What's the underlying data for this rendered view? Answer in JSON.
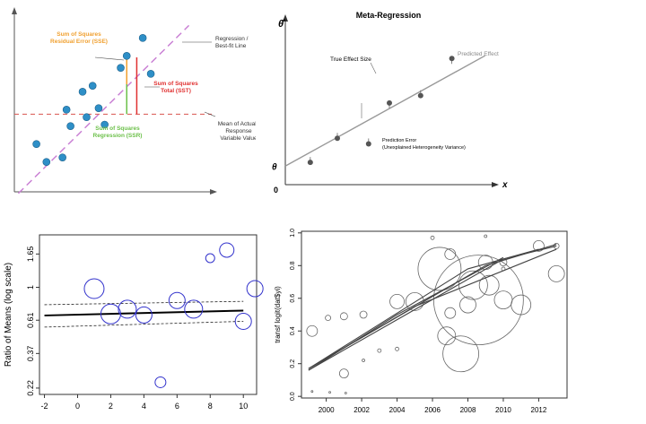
{
  "chart_data": [
    {
      "type": "scatter",
      "id": "regression-diagram",
      "title": "",
      "points": [
        [
          1.1,
          3.2
        ],
        [
          1.6,
          2.0
        ],
        [
          2.4,
          2.3
        ],
        [
          2.6,
          5.5
        ],
        [
          2.8,
          4.4
        ],
        [
          3.4,
          6.7
        ],
        [
          3.6,
          5.0
        ],
        [
          3.9,
          7.1
        ],
        [
          4.2,
          5.6
        ],
        [
          4.5,
          4.5
        ],
        [
          5.3,
          8.3
        ],
        [
          5.6,
          9.1
        ],
        [
          6.4,
          10.3
        ],
        [
          6.8,
          7.9
        ]
      ],
      "fit_line": {
        "intercept": 0.0,
        "slope": 1.28
      },
      "mean_y": 5.2,
      "xlim": [
        0,
        11
      ],
      "ylim": [
        0,
        12
      ],
      "annotations": {
        "sse": [
          "Sum of Squares",
          "Residual Error (SSE)"
        ],
        "ssr": [
          "Sum of Squares",
          "Regression (SSR)"
        ],
        "sst": [
          "Sum of Squares",
          "Total (SST)"
        ],
        "fit": [
          "Regression /",
          "Best-fit Line"
        ],
        "mean": [
          "Mean of Actual /",
          "Response",
          "Variable Value"
        ]
      },
      "colors": {
        "point": "#2e8fc7",
        "fit": "#c97fd4",
        "mean": "#d9534f",
        "sse": "#f0a030",
        "ssr": "#6cc04a",
        "sst": "#e03030"
      }
    },
    {
      "type": "scatter",
      "id": "meta-regression",
      "title": "Meta-Regression",
      "ylabel": "θ̂",
      "intercept_label": "θ",
      "origin_label": "0",
      "xlabel": "x",
      "points": [
        [
          1.2,
          1.2
        ],
        [
          2.5,
          2.5
        ],
        [
          4.0,
          2.2
        ],
        [
          5.0,
          4.4
        ],
        [
          6.5,
          4.8
        ],
        [
          8.0,
          6.8
        ]
      ],
      "line": {
        "intercept": 1.0,
        "slope": 0.62
      },
      "xlim": [
        0,
        10
      ],
      "ylim": [
        0,
        8.5
      ],
      "labels": {
        "true_effect": "True Effect Size",
        "predicted": "Predicted Effect",
        "error_title": "Prediction Error",
        "error_sub": "(Unexplained Heterogeneity Variance)"
      }
    },
    {
      "type": "scatter",
      "id": "bubble-log-ratio",
      "title": "",
      "ylabel": "Ratio of Means (log scale)",
      "xlabel": "",
      "x_ticks": [
        -2,
        0,
        2,
        4,
        6,
        8,
        10
      ],
      "y_ticks": [
        "1.65",
        "1",
        "0.61",
        "0.37",
        "0.22"
      ],
      "y_tick_values": [
        1.65,
        1,
        0.61,
        0.37,
        0.22
      ],
      "xlim": [
        -2.3,
        10.8
      ],
      "ylim": [
        0.2,
        2.2
      ],
      "points": [
        {
          "x": 1.0,
          "y": 0.98,
          "w": 11
        },
        {
          "x": 2.0,
          "y": 0.67,
          "w": 11
        },
        {
          "x": 3.0,
          "y": 0.72,
          "w": 10
        },
        {
          "x": 4.0,
          "y": 0.66,
          "w": 9
        },
        {
          "x": 5.0,
          "y": 0.24,
          "w": 6
        },
        {
          "x": 6.0,
          "y": 0.82,
          "w": 9
        },
        {
          "x": 7.0,
          "y": 0.72,
          "w": 10
        },
        {
          "x": 8.0,
          "y": 1.55,
          "w": 5
        },
        {
          "x": 9.0,
          "y": 1.75,
          "w": 8
        },
        {
          "x": 10.0,
          "y": 0.6,
          "w": 9
        },
        {
          "x": 10.7,
          "y": 0.98,
          "w": 9
        }
      ],
      "reg_line": [
        [
          -2,
          0.655
        ],
        [
          10,
          0.705
        ]
      ],
      "ci_upper": [
        [
          -2,
          0.77
        ],
        [
          10,
          0.81
        ]
      ],
      "ci_lower": [
        [
          -2,
          0.55
        ],
        [
          10,
          0.6
        ]
      ],
      "colors": {
        "bubble": "#3333cc"
      }
    },
    {
      "type": "scatter",
      "id": "bubble-transf-logit",
      "title": "",
      "ylabel": "transf logit(dat$yi)",
      "xlabel": "",
      "x_ticks": [
        2000,
        2002,
        2004,
        2006,
        2008,
        2010,
        2012
      ],
      "y_ticks": [
        0.0,
        0.2,
        0.4,
        0.6,
        0.8,
        1.0
      ],
      "xlim": [
        1998.6,
        2013.6
      ],
      "ylim": [
        -0.01,
        1.01
      ],
      "points": [
        {
          "x": 1999.2,
          "y": 0.03,
          "r": 1
        },
        {
          "x": 2000.2,
          "y": 0.025,
          "r": 1
        },
        {
          "x": 2001.1,
          "y": 0.02,
          "r": 1
        },
        {
          "x": 1999.2,
          "y": 0.4,
          "r": 6
        },
        {
          "x": 2000.1,
          "y": 0.48,
          "r": 3
        },
        {
          "x": 2001.0,
          "y": 0.49,
          "r": 4
        },
        {
          "x": 2001.0,
          "y": 0.14,
          "r": 5
        },
        {
          "x": 2002.1,
          "y": 0.5,
          "r": 4
        },
        {
          "x": 2002.1,
          "y": 0.22,
          "r": 1.5
        },
        {
          "x": 2003.0,
          "y": 0.28,
          "r": 2
        },
        {
          "x": 2004.0,
          "y": 0.29,
          "r": 2
        },
        {
          "x": 2004.0,
          "y": 0.58,
          "r": 8
        },
        {
          "x": 2005.0,
          "y": 0.58,
          "r": 10
        },
        {
          "x": 2006.0,
          "y": 0.97,
          "r": 2
        },
        {
          "x": 2006.4,
          "y": 0.78,
          "r": 24
        },
        {
          "x": 2006.8,
          "y": 0.37,
          "r": 10
        },
        {
          "x": 2007.0,
          "y": 0.87,
          "r": 6
        },
        {
          "x": 2007.0,
          "y": 0.51,
          "r": 6
        },
        {
          "x": 2007.6,
          "y": 0.26,
          "r": 20
        },
        {
          "x": 2008.0,
          "y": 0.56,
          "r": 9
        },
        {
          "x": 2008.3,
          "y": 0.68,
          "r": 16
        },
        {
          "x": 2008.6,
          "y": 0.59,
          "r": 50
        },
        {
          "x": 2009.0,
          "y": 0.98,
          "r": 1.5
        },
        {
          "x": 2009.0,
          "y": 0.82,
          "r": 8
        },
        {
          "x": 2009.2,
          "y": 0.68,
          "r": 11
        },
        {
          "x": 2010.0,
          "y": 0.82,
          "r": 4
        },
        {
          "x": 2010.0,
          "y": 0.78,
          "r": 2
        },
        {
          "x": 2010.0,
          "y": 0.59,
          "r": 10
        },
        {
          "x": 2011.0,
          "y": 0.56,
          "r": 11
        },
        {
          "x": 2012.0,
          "y": 0.92,
          "r": 6
        },
        {
          "x": 2013.0,
          "y": 0.92,
          "r": 3
        },
        {
          "x": 2013.0,
          "y": 0.75,
          "r": 9
        }
      ],
      "lines": [
        [
          [
            1999,
            0.16
          ],
          [
            2010,
            0.84
          ],
          [
            2013,
            0.92
          ]
        ],
        [
          [
            1999,
            0.17
          ],
          [
            2009,
            0.8
          ],
          [
            2013,
            0.93
          ]
        ],
        [
          [
            1999,
            0.17
          ],
          [
            2005,
            0.55
          ],
          [
            2013,
            0.9
          ]
        ],
        [
          [
            1999,
            0.16
          ],
          [
            2004,
            0.5
          ],
          [
            2010,
            0.85
          ]
        ],
        [
          [
            1999,
            0.17
          ],
          [
            2008,
            0.78
          ],
          [
            2012,
            0.9
          ]
        ]
      ]
    }
  ]
}
